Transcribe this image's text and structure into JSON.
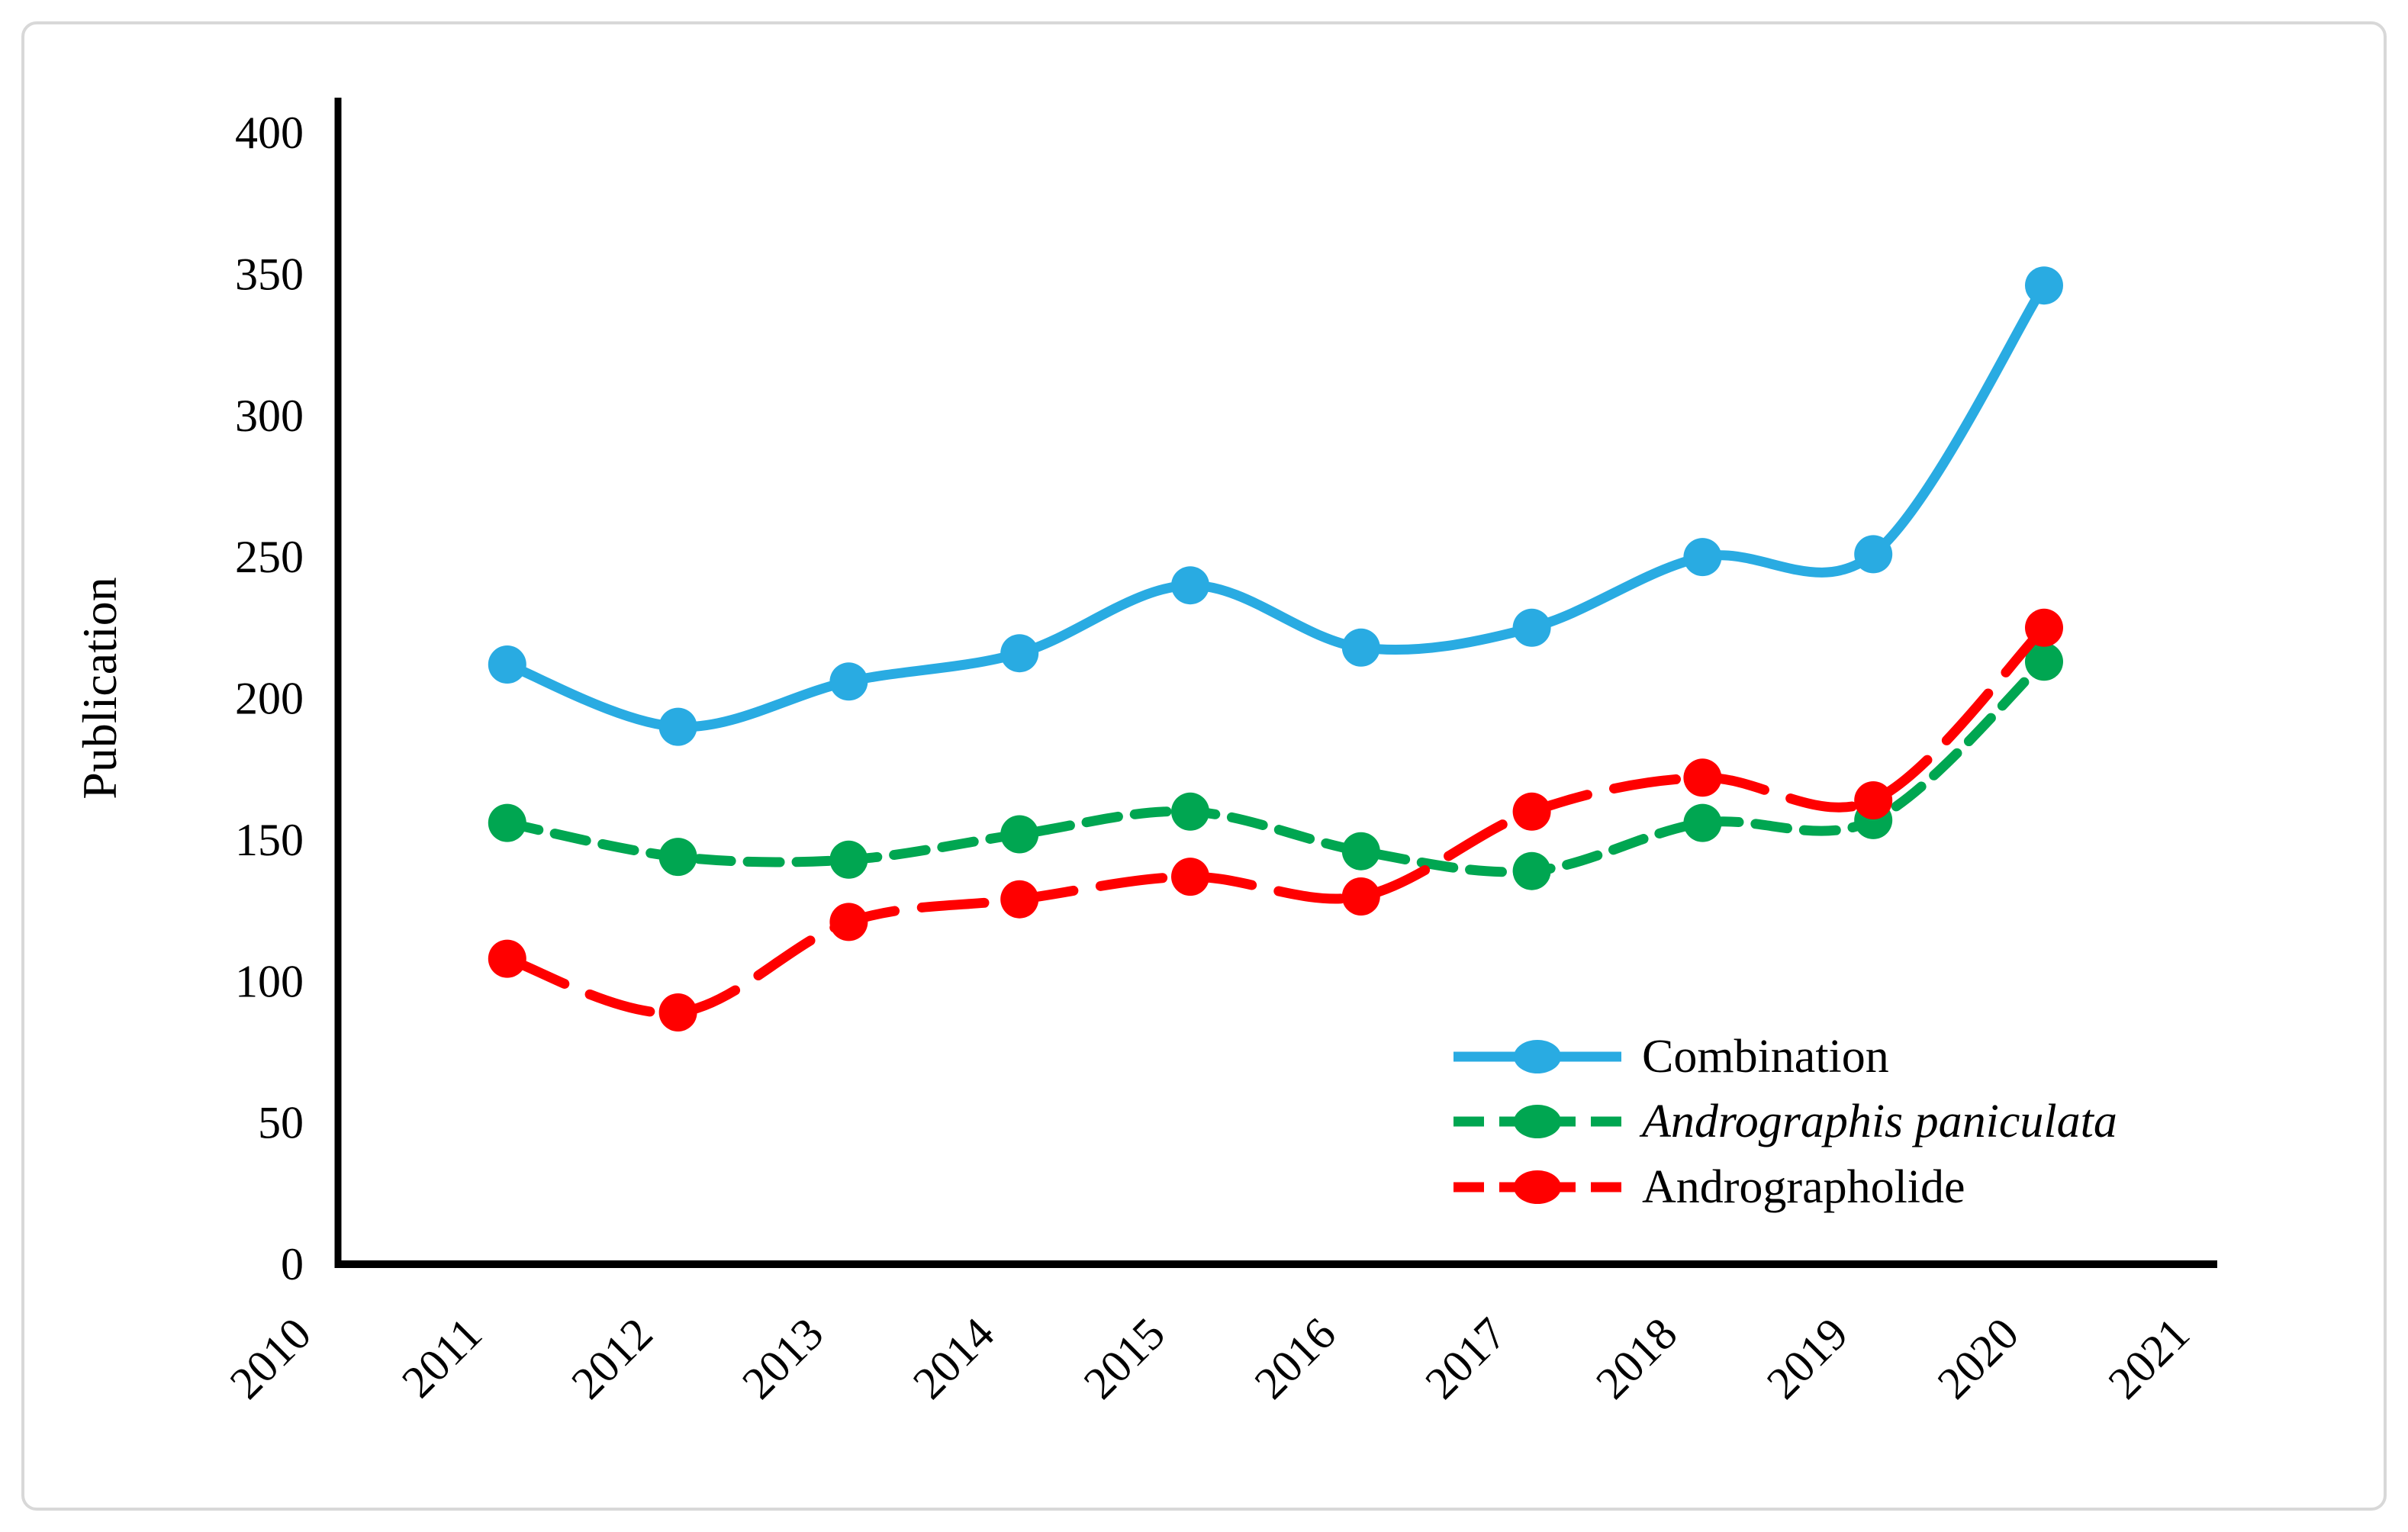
{
  "figure": {
    "background": "#ffffff",
    "frame_border_color": "#d8d8d8",
    "axis_color": "#000000"
  },
  "chart_data": {
    "type": "line",
    "title": "",
    "xlabel": "",
    "ylabel": "Publication",
    "grid": false,
    "x_tick_labels": [
      "2010",
      "2011",
      "2012",
      "2013",
      "2014",
      "2015",
      "2016",
      "2017",
      "2018",
      "2019",
      "2020",
      "2021"
    ],
    "x_range": [
      2010,
      2021
    ],
    "y_ticks": [
      0,
      50,
      100,
      150,
      200,
      250,
      300,
      350,
      400
    ],
    "ylim": [
      0,
      400
    ],
    "x": [
      2011,
      2012,
      2013,
      2014,
      2015,
      2016,
      2017,
      2018,
      2019,
      2020
    ],
    "series": [
      {
        "name": "Combination",
        "color": "#29ABE2",
        "line_style": "solid",
        "italic": false,
        "values": [
          212,
          190,
          206,
          216,
          240,
          218,
          225,
          250,
          251,
          346
        ]
      },
      {
        "name": "Andrographis paniculata",
        "color": "#00A651",
        "line_style": "dashed",
        "italic": true,
        "values": [
          156,
          144,
          143,
          152,
          160,
          146,
          139,
          156,
          157,
          213
        ]
      },
      {
        "name": "Andrographolide",
        "color": "#FF0000",
        "line_style": "long-dash",
        "italic": false,
        "values": [
          108,
          89,
          121,
          129,
          137,
          130,
          160,
          172,
          164,
          225
        ]
      }
    ],
    "legend_position": "inside-lower-right"
  }
}
